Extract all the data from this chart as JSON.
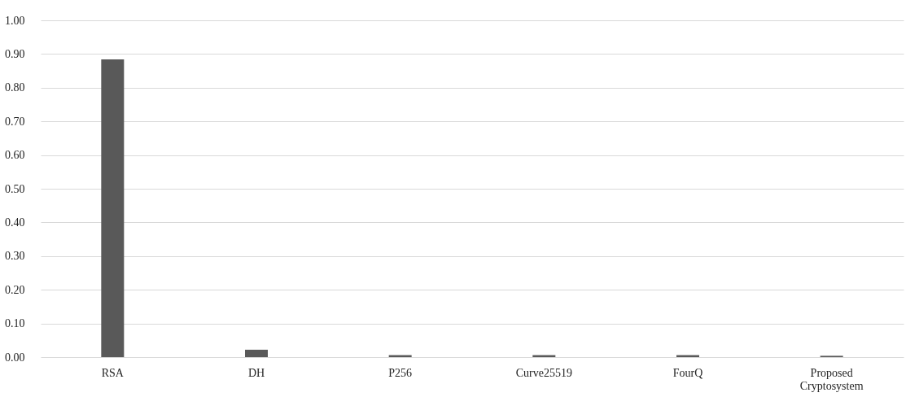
{
  "chart_data": {
    "type": "bar",
    "categories": [
      "RSA",
      "DH",
      "P256",
      "Curve25519",
      "FourQ",
      "Proposed Cryptosystem"
    ],
    "values": [
      0.884,
      0.022,
      0.006,
      0.006,
      0.006,
      0.004
    ],
    "color": "#595959",
    "ylim": [
      0,
      1
    ],
    "yticks": [
      {
        "value": 0,
        "label": "0.00"
      },
      {
        "value": 0.1,
        "label": "0.10"
      },
      {
        "value": 0.2,
        "label": "0.20"
      },
      {
        "value": 0.3,
        "label": "0.30"
      },
      {
        "value": 0.4,
        "label": "0.40"
      },
      {
        "value": 0.5,
        "label": "0.50"
      },
      {
        "value": 0.6,
        "label": "0.60"
      },
      {
        "value": 0.7,
        "label": "0.70"
      },
      {
        "value": 0.8,
        "label": "0.80"
      },
      {
        "value": 0.9,
        "label": "0.90"
      },
      {
        "value": 1,
        "label": "1.00"
      }
    ],
    "grid": "y"
  }
}
